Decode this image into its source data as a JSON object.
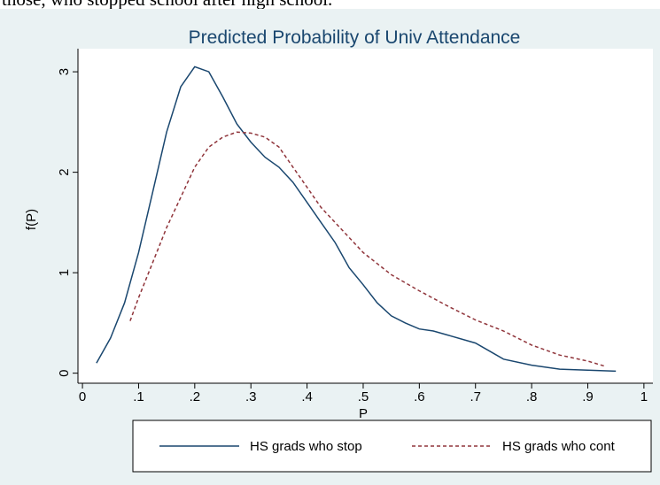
{
  "header_text": "those, who stopped school after high school.",
  "chart_data": {
    "type": "line",
    "title": "Predicted Probability of Univ Attendance",
    "x_label": "P",
    "y_label": "f(P)",
    "xlim": [
      -0.008,
      1.016
    ],
    "ylim": [
      -0.1,
      3.23
    ],
    "xticks": [
      0,
      {
        "value": 0.1,
        "label": ".1"
      },
      {
        "value": 0.2,
        "label": ".2"
      },
      {
        "value": 0.3,
        "label": ".3"
      },
      {
        "value": 0.4,
        "label": ".4"
      },
      {
        "value": 0.5,
        "label": ".5"
      },
      {
        "value": 0.6,
        "label": ".6"
      },
      {
        "value": 0.7,
        "label": ".7"
      },
      {
        "value": 0.8,
        "label": ".8"
      },
      {
        "value": 0.9,
        "label": ".9"
      },
      1
    ],
    "yticks": [
      0,
      1,
      2,
      3
    ],
    "legend": "bottom",
    "series": [
      {
        "name": "HS grads who stop",
        "color": "#1a476f",
        "dash": "solid",
        "x": [
          0.025,
          0.05,
          0.075,
          0.1,
          0.125,
          0.15,
          0.175,
          0.2,
          0.225,
          0.25,
          0.275,
          0.3,
          0.325,
          0.35,
          0.375,
          0.4,
          0.425,
          0.45,
          0.475,
          0.5,
          0.525,
          0.55,
          0.575,
          0.6,
          0.625,
          0.65,
          0.7,
          0.725,
          0.75,
          0.8,
          0.85,
          0.9,
          0.95
        ],
        "values": [
          0.1,
          0.35,
          0.7,
          1.2,
          1.8,
          2.4,
          2.85,
          3.05,
          3.0,
          2.75,
          2.48,
          2.3,
          2.15,
          2.05,
          1.9,
          1.7,
          1.5,
          1.3,
          1.05,
          0.88,
          0.7,
          0.57,
          0.5,
          0.44,
          0.42,
          0.38,
          0.3,
          0.22,
          0.14,
          0.08,
          0.04,
          0.03,
          0.02
        ]
      },
      {
        "name": "HS grads who cont",
        "color": "#90353b",
        "dash": "dashed",
        "x": [
          0.085,
          0.1,
          0.125,
          0.15,
          0.175,
          0.2,
          0.225,
          0.25,
          0.275,
          0.3,
          0.325,
          0.35,
          0.375,
          0.4,
          0.425,
          0.45,
          0.5,
          0.55,
          0.6,
          0.65,
          0.7,
          0.75,
          0.8,
          0.85,
          0.9,
          0.93
        ],
        "values": [
          0.52,
          0.75,
          1.1,
          1.45,
          1.75,
          2.05,
          2.25,
          2.35,
          2.4,
          2.39,
          2.35,
          2.25,
          2.05,
          1.85,
          1.65,
          1.5,
          1.2,
          0.98,
          0.82,
          0.67,
          0.53,
          0.42,
          0.28,
          0.18,
          0.12,
          0.07
        ]
      }
    ]
  }
}
